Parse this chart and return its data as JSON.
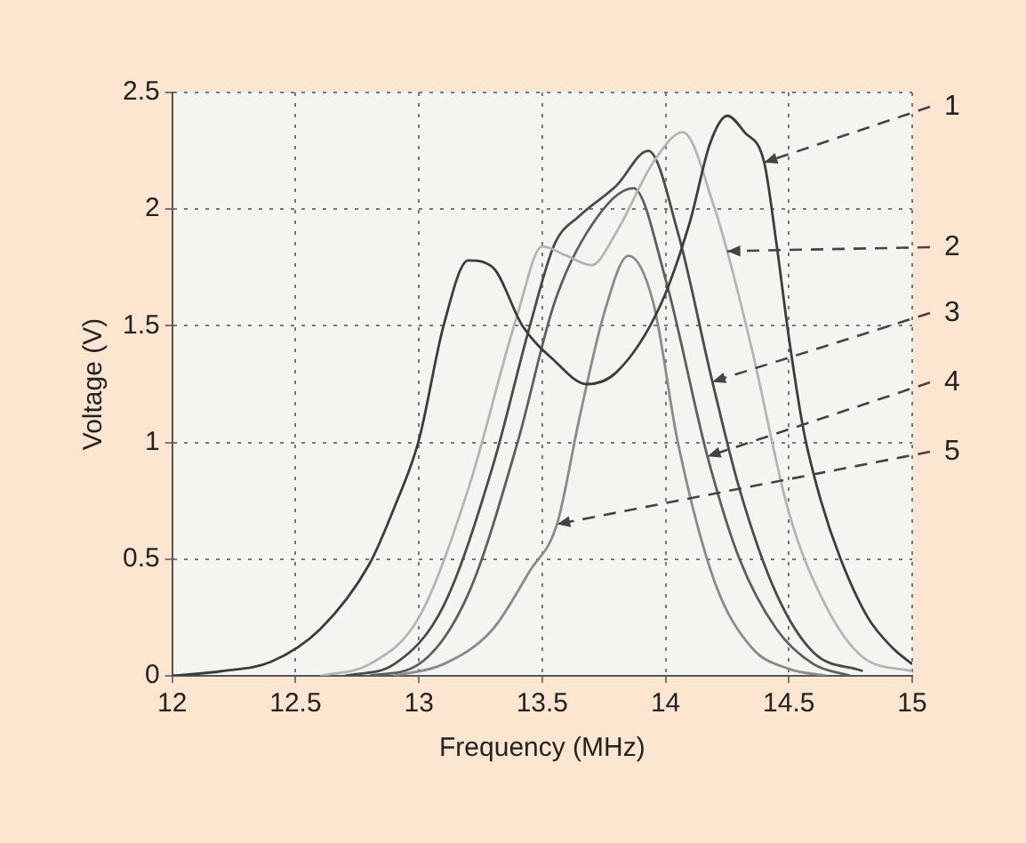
{
  "chart_data": {
    "type": "line",
    "xlabel": "Frequency (MHz)",
    "ylabel": "Voltage (V)",
    "xlim": [
      12,
      15
    ],
    "xticks": [
      12,
      12.5,
      13,
      13.5,
      14,
      14.5,
      15
    ],
    "ylim": [
      0,
      2.5
    ],
    "yticks": [
      0,
      0.5,
      1,
      1.5,
      2,
      2.5
    ],
    "grid": true,
    "legend": false,
    "series": [
      {
        "color": "#3c3c3c",
        "x": [
          12,
          12.2,
          12.4,
          12.6,
          12.8,
          12.9,
          13,
          13.1,
          13.2,
          13.3,
          13.42,
          13.55,
          13.68,
          13.8,
          13.98,
          14.1,
          14.18,
          14.25,
          14.32,
          14.4,
          14.45,
          14.5,
          14.56,
          14.63,
          14.71,
          14.82,
          14.92,
          15
        ],
        "values": [
          0,
          0.02,
          0.06,
          0.2,
          0.48,
          0.72,
          1.01,
          1.5,
          1.78,
          1.75,
          1.5,
          1.35,
          1.25,
          1.3,
          1.59,
          1.95,
          2.28,
          2.4,
          2.33,
          2.2,
          1.85,
          1.45,
          1.05,
          0.75,
          0.5,
          0.25,
          0.12,
          0.05
        ]
      },
      {
        "color": "#b4b4b4",
        "x": [
          12.6,
          12.8,
          13,
          13.2,
          13.4,
          13.5,
          13.6,
          13.7,
          13.8,
          13.95,
          14.07,
          14.2,
          14.25,
          14.35,
          14.5,
          14.65,
          14.8,
          15
        ],
        "values": [
          0,
          0.05,
          0.25,
          0.8,
          1.55,
          1.84,
          1.8,
          1.76,
          1.9,
          2.2,
          2.33,
          2.0,
          1.82,
          1.4,
          0.7,
          0.3,
          0.08,
          0.02
        ]
      },
      {
        "color": "#4a4a4a",
        "x": [
          12.7,
          12.9,
          13.1,
          13.3,
          13.45,
          13.55,
          13.65,
          13.8,
          13.93,
          14.05,
          14.19,
          14.3,
          14.45,
          14.6,
          14.8
        ],
        "values": [
          0,
          0.05,
          0.3,
          0.9,
          1.5,
          1.85,
          1.97,
          2.1,
          2.25,
          1.9,
          1.26,
          0.8,
          0.35,
          0.1,
          0.02
        ]
      },
      {
        "color": "#5e5e5e",
        "x": [
          12.8,
          13,
          13.2,
          13.4,
          13.55,
          13.7,
          13.87,
          14,
          14.17,
          14.3,
          14.45,
          14.6,
          14.75
        ],
        "values": [
          0,
          0.05,
          0.35,
          1.0,
          1.6,
          1.93,
          2.09,
          1.7,
          0.94,
          0.5,
          0.2,
          0.05,
          0
        ]
      },
      {
        "color": "#8a8a8a",
        "x": [
          12.9,
          13.1,
          13.3,
          13.45,
          13.56,
          13.65,
          13.75,
          13.85,
          13.95,
          14.05,
          14.2,
          14.35,
          14.5,
          14.65
        ],
        "values": [
          0,
          0.05,
          0.2,
          0.45,
          0.65,
          1.1,
          1.55,
          1.8,
          1.6,
          1.0,
          0.4,
          0.12,
          0.03,
          0
        ]
      }
    ],
    "annotations": [
      {
        "text": "1",
        "x": 14.4,
        "y": 2.2
      },
      {
        "text": "2",
        "x": 14.25,
        "y": 1.82
      },
      {
        "text": "3",
        "x": 14.19,
        "y": 1.26
      },
      {
        "text": "4",
        "x": 14.17,
        "y": 0.94
      },
      {
        "text": "5",
        "x": 13.56,
        "y": 0.65
      }
    ]
  }
}
